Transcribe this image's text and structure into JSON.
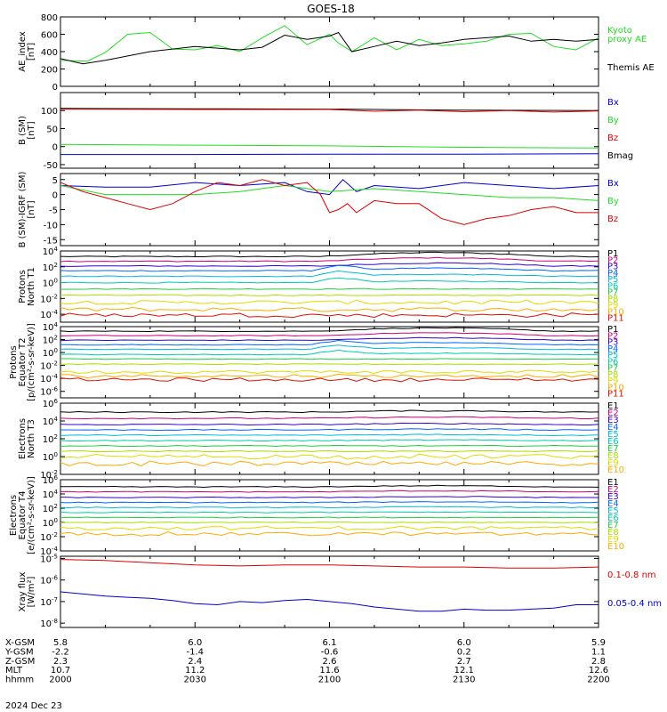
{
  "title": "GOES-18",
  "date_label": "2024 Dec 23",
  "colors": {
    "black": "#000000",
    "green": "#22dd22",
    "red": "#dd0000",
    "blue": "#0000cc",
    "ladder": [
      "#000000",
      "#cc0077",
      "#3300cc",
      "#0066ff",
      "#00bbdd",
      "#00ccaa",
      "#22cc44",
      "#aadd00",
      "#dddd00",
      "#ffaa00",
      "#dd1100"
    ]
  },
  "time_axis": {
    "ticks": [
      "2000",
      "2030",
      "2100",
      "2130",
      "2200"
    ],
    "row_labels": [
      "X-GSM",
      "Y-GSM",
      "Z-GSM",
      "MLT",
      "hhmm"
    ],
    "rows": [
      [
        "5.8",
        "6.0",
        "6.1",
        "6.0",
        "5.9"
      ],
      [
        "-2.2",
        "-1.4",
        "-0.6",
        "0.2",
        "1.1"
      ],
      [
        "2.3",
        "2.4",
        "2.6",
        "2.7",
        "2.8"
      ],
      [
        "10.7",
        "11.2",
        "11.6",
        "12.1",
        "12.6"
      ],
      [
        "2000",
        "2030",
        "2100",
        "2130",
        "2200"
      ]
    ]
  },
  "chart_data": [
    {
      "id": "ae",
      "type": "line",
      "ylabel_lines": [
        "AE_index",
        "[nT]"
      ],
      "ylim": [
        0,
        800
      ],
      "yticks": [
        "0",
        "200",
        "400",
        "600",
        "800"
      ],
      "legend": [
        {
          "text": "Kyoto",
          "color": "#22dd22"
        },
        {
          "text": "proxy AE",
          "color": "#22dd22"
        },
        {
          "text": "Themis AE",
          "color": "#000000"
        }
      ],
      "series": [
        {
          "name": "Kyoto proxy AE",
          "color": "#22dd22",
          "x": [
            0,
            6,
            10,
            15,
            20,
            25,
            30,
            35,
            40,
            45,
            50,
            55,
            60,
            62,
            65,
            70,
            75,
            80,
            85,
            90,
            95,
            100,
            105,
            110,
            115,
            120
          ],
          "y": [
            300,
            290,
            390,
            600,
            620,
            430,
            420,
            470,
            400,
            560,
            700,
            480,
            600,
            500,
            400,
            560,
            420,
            540,
            470,
            490,
            520,
            600,
            610,
            460,
            420,
            560
          ]
        },
        {
          "name": "Themis AE",
          "color": "#000000",
          "x": [
            0,
            5,
            10,
            15,
            20,
            25,
            30,
            35,
            40,
            45,
            50,
            55,
            60,
            62,
            65,
            70,
            75,
            80,
            85,
            90,
            95,
            100,
            105,
            110,
            115,
            120
          ],
          "y": [
            320,
            260,
            300,
            350,
            400,
            430,
            460,
            440,
            420,
            450,
            590,
            540,
            580,
            620,
            400,
            460,
            520,
            470,
            500,
            540,
            560,
            580,
            520,
            540,
            520,
            540
          ]
        }
      ]
    },
    {
      "id": "bsm",
      "type": "line",
      "ylabel_lines": [
        "B (SM)",
        "[nT]"
      ],
      "ylim": [
        -60,
        150
      ],
      "yticks": [
        "-50",
        "0",
        "50",
        "100"
      ],
      "legend": [
        {
          "text": "Bx",
          "color": "#0000cc"
        },
        {
          "text": "By",
          "color": "#22dd22"
        },
        {
          "text": "Bz",
          "color": "#dd0000"
        },
        {
          "text": "Bmag",
          "color": "#000000"
        }
      ],
      "series": [
        {
          "name": "Bmag",
          "color": "#000000",
          "x": [
            0,
            30,
            60,
            90,
            120
          ],
          "y": [
            106,
            105,
            104,
            101,
            100
          ]
        },
        {
          "name": "Bz",
          "color": "#dd0000",
          "x": [
            0,
            30,
            60,
            70,
            80,
            90,
            100,
            110,
            120
          ],
          "y": [
            104,
            103,
            103,
            98,
            101,
            97,
            100,
            96,
            99
          ]
        },
        {
          "name": "By",
          "color": "#22dd22",
          "x": [
            0,
            30,
            60,
            90,
            120
          ],
          "y": [
            6,
            4,
            2,
            -2,
            -4
          ]
        },
        {
          "name": "Bx",
          "color": "#0000cc",
          "x": [
            0,
            30,
            60,
            90,
            120
          ],
          "y": [
            -22,
            -22,
            -21,
            -21,
            -20
          ]
        }
      ]
    },
    {
      "id": "bigrf",
      "type": "line",
      "ylabel_lines": [
        "B (SM)-IGRF (SM)",
        "[nT]"
      ],
      "ylim": [
        -17,
        7
      ],
      "yticks": [
        "-15",
        "-10",
        "-5",
        "0",
        "5"
      ],
      "legend": [
        {
          "text": "Bx",
          "color": "#0000cc"
        },
        {
          "text": "By",
          "color": "#22dd22"
        },
        {
          "text": "Bz",
          "color": "#dd0000"
        }
      ],
      "series": [
        {
          "name": "Bx",
          "color": "#0000cc",
          "x": [
            0,
            10,
            20,
            30,
            40,
            50,
            55,
            60,
            63,
            66,
            70,
            80,
            90,
            100,
            110,
            120
          ],
          "y": [
            3,
            2.5,
            2.5,
            4,
            3,
            4,
            1,
            0,
            5,
            1,
            3,
            2,
            4,
            3,
            2,
            3
          ]
        },
        {
          "name": "By",
          "color": "#22dd22",
          "x": [
            0,
            10,
            20,
            30,
            40,
            50,
            60,
            70,
            80,
            90,
            100,
            110,
            120
          ],
          "y": [
            3,
            0,
            0,
            0,
            1,
            3,
            1,
            2,
            1,
            0,
            -1,
            -1,
            -2
          ]
        },
        {
          "name": "Bz",
          "color": "#dd0000",
          "x": [
            0,
            5,
            10,
            15,
            20,
            25,
            30,
            35,
            40,
            45,
            50,
            55,
            58,
            60,
            62,
            64,
            66,
            70,
            75,
            80,
            85,
            90,
            95,
            100,
            105,
            110,
            115,
            120
          ],
          "y": [
            4,
            1,
            -1,
            -3,
            -5,
            -3,
            1,
            4,
            3,
            5,
            3,
            4,
            0,
            -6,
            -5,
            -3,
            -6,
            -2,
            -3,
            -3,
            -8,
            -10,
            -8,
            -7,
            -5,
            -4,
            -6,
            -6
          ]
        }
      ]
    },
    {
      "id": "protons_t1",
      "type": "line",
      "ylabel_lines": [
        "Protons",
        "North T1"
      ],
      "ylog": true,
      "ylim_exp": [
        -5,
        4
      ],
      "yticks": [
        "10^4",
        "10^2",
        "10^0",
        "10^-2",
        "10^-4"
      ],
      "legend": [
        "P1",
        "P2",
        "P3",
        "P4",
        "P5",
        "P6",
        "P7",
        "P8",
        "P9",
        "P10",
        "P11"
      ],
      "series_levels": [
        3.3,
        2.7,
        2.1,
        1.5,
        0.8,
        0.0,
        -0.8,
        -1.6,
        -2.5,
        -3.4,
        -4.1
      ]
    },
    {
      "id": "protons_t2",
      "type": "line",
      "ylabel_lines": [
        "Protons",
        "Equator T2",
        "[p/(cm²-s-sr-keV)]"
      ],
      "ylog": true,
      "ylim_exp": [
        -7,
        4
      ],
      "yticks": [
        "10^4",
        "10^2",
        "10^0",
        "10^-2",
        "10^-4",
        "10^-6"
      ],
      "legend": [
        "P1",
        "P2",
        "P3",
        "P4",
        "P5",
        "P6",
        "P7",
        "P8",
        "P9",
        "P10",
        "P11"
      ],
      "series_levels": [
        3.3,
        2.6,
        1.9,
        1.2,
        0.5,
        -0.3,
        -1.0,
        -1.8,
        -3.0,
        -3.6,
        -4.2
      ]
    },
    {
      "id": "electrons_t3",
      "type": "line",
      "ylabel_lines": [
        "Electrons",
        "North T3"
      ],
      "ylog": true,
      "ylim_exp": [
        -2,
        6
      ],
      "yticks": [
        "10^6",
        "10^4",
        "10^2",
        "10^0",
        "10^-2"
      ],
      "legend": [
        "E1",
        "E2",
        "E3",
        "E4",
        "E5",
        "E6",
        "E7",
        "E8",
        "E9",
        "E10"
      ],
      "series_levels": [
        5.0,
        4.3,
        3.6,
        3.0,
        2.4,
        1.8,
        1.2,
        0.6,
        0.0,
        -0.8
      ]
    },
    {
      "id": "electrons_t4",
      "type": "line",
      "ylabel_lines": [
        "Electrons",
        "Equator T4",
        "[e/(cm²-s-sr-keV)]"
      ],
      "ylog": true,
      "ylim_exp": [
        -4,
        6
      ],
      "yticks": [
        "10^6",
        "10^4",
        "10^2",
        "10^0",
        "10^-2",
        "10^-4"
      ],
      "legend": [
        "E1",
        "E2",
        "E3",
        "E4",
        "E5",
        "E6",
        "E7",
        "E8",
        "E9",
        "E10"
      ],
      "series_levels": [
        5.0,
        4.3,
        3.5,
        2.8,
        2.1,
        1.4,
        0.7,
        0.0,
        -0.8,
        -1.6
      ]
    },
    {
      "id": "xray",
      "type": "line",
      "ylabel_lines": [
        "Xray flux",
        "[W/m²]"
      ],
      "ylog": true,
      "ylim_exp": [
        -8.2,
        -4.9
      ],
      "yticks": [
        "10^-5",
        "10^-6",
        "10^-7",
        "10^-8"
      ],
      "legend": [
        {
          "text": "0.1-0.8 nm",
          "color": "#dd0000"
        },
        {
          "text": "0.05-0.4 nm",
          "color": "#0000cc"
        }
      ],
      "series": [
        {
          "name": "0.1-0.8 nm",
          "color": "#dd0000",
          "x": [
            0,
            10,
            20,
            30,
            40,
            50,
            60,
            70,
            80,
            90,
            100,
            110,
            120
          ],
          "y": [
            -5.05,
            -5.1,
            -5.2,
            -5.3,
            -5.35,
            -5.3,
            -5.3,
            -5.35,
            -5.4,
            -5.4,
            -5.45,
            -5.45,
            -5.4
          ]
        },
        {
          "name": "0.05-0.4 nm",
          "color": "#0000cc",
          "x": [
            0,
            5,
            10,
            15,
            20,
            25,
            30,
            35,
            40,
            45,
            50,
            55,
            60,
            65,
            70,
            75,
            80,
            85,
            90,
            95,
            100,
            105,
            110,
            115,
            120
          ],
          "y": [
            -6.55,
            -6.65,
            -6.75,
            -6.8,
            -6.85,
            -6.95,
            -7.1,
            -7.15,
            -7.0,
            -7.05,
            -6.95,
            -6.9,
            -7.0,
            -7.1,
            -7.25,
            -7.35,
            -7.45,
            -7.45,
            -7.35,
            -7.4,
            -7.4,
            -7.35,
            -7.3,
            -7.15,
            -7.15
          ]
        }
      ]
    }
  ]
}
